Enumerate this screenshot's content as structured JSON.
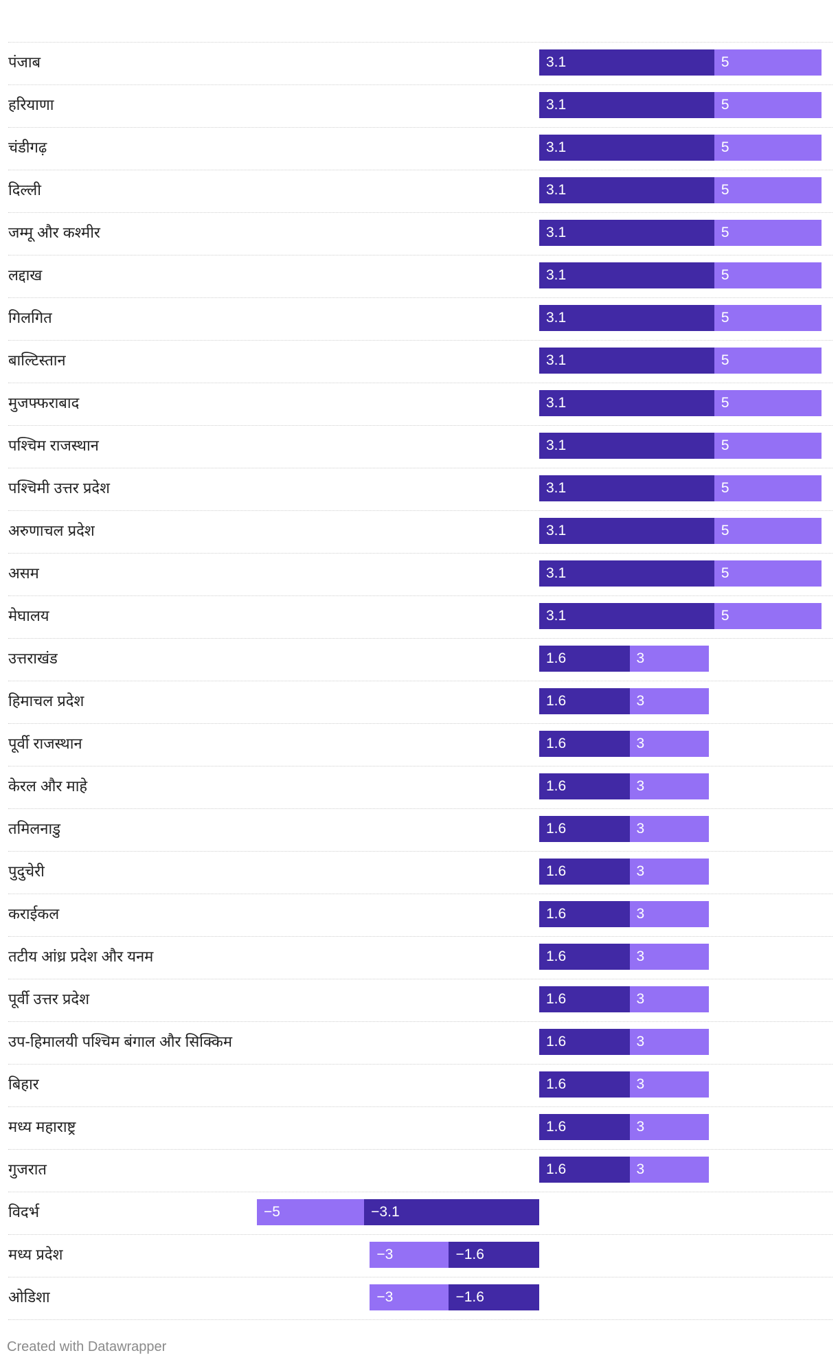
{
  "chart_data": {
    "type": "bar",
    "orientation": "horizontal",
    "stacked": "overlay",
    "categories": [
      "पंजाब",
      "हरियाणा",
      "चंडीगढ़",
      "दिल्ली",
      "जम्मू और कश्मीर",
      "लद्दाख",
      "गिलगित",
      "बाल्टिस्तान",
      "मुजफ्फराबाद",
      "पश्चिम राजस्थान",
      "पश्चिमी उत्तर प्रदेश",
      "अरुणाचल प्रदेश",
      "असम",
      "मेघालय",
      "उत्तराखंड",
      "हिमाचल प्रदेश",
      "पूर्वी राजस्थान",
      "केरल और माहे",
      "तमिलनाडु",
      "पुदुचेरी",
      "कराईकल",
      "तटीय आंध्र प्रदेश और यनम",
      "पूर्वी उत्तर प्रदेश",
      "उप-हिमालयी पश्चिम बंगाल और सिक्किम",
      "बिहार",
      "मध्य महाराष्ट्र",
      "गुजरात",
      "विदर्भ",
      "मध्य प्रदेश",
      "ओडिशा"
    ],
    "series": [
      {
        "name": "dark",
        "color": "#4129a5",
        "values": [
          3.1,
          3.1,
          3.1,
          3.1,
          3.1,
          3.1,
          3.1,
          3.1,
          3.1,
          3.1,
          3.1,
          3.1,
          3.1,
          3.1,
          1.6,
          1.6,
          1.6,
          1.6,
          1.6,
          1.6,
          1.6,
          1.6,
          1.6,
          1.6,
          1.6,
          1.6,
          1.6,
          -3.1,
          -1.6,
          -1.6
        ],
        "labels": [
          "3.1",
          "3.1",
          "3.1",
          "3.1",
          "3.1",
          "3.1",
          "3.1",
          "3.1",
          "3.1",
          "3.1",
          "3.1",
          "3.1",
          "3.1",
          "3.1",
          "1.6",
          "1.6",
          "1.6",
          "1.6",
          "1.6",
          "1.6",
          "1.6",
          "1.6",
          "1.6",
          "1.6",
          "1.6",
          "1.6",
          "1.6",
          "−3.1",
          "−1.6",
          "−1.6"
        ]
      },
      {
        "name": "light",
        "color": "#9470f5",
        "values": [
          5,
          5,
          5,
          5,
          5,
          5,
          5,
          5,
          5,
          5,
          5,
          5,
          5,
          5,
          3,
          3,
          3,
          3,
          3,
          3,
          3,
          3,
          3,
          3,
          3,
          3,
          3,
          -5,
          -3,
          -3
        ],
        "labels": [
          "5",
          "5",
          "5",
          "5",
          "5",
          "5",
          "5",
          "5",
          "5",
          "5",
          "5",
          "5",
          "5",
          "5",
          "3",
          "3",
          "3",
          "3",
          "3",
          "3",
          "3",
          "3",
          "3",
          "3",
          "3",
          "3",
          "3",
          "−5",
          "−3",
          "−3"
        ]
      }
    ],
    "xlim": [
      -5,
      5
    ],
    "title": "",
    "xlabel": "",
    "ylabel": "",
    "grid": false,
    "legend": "none"
  },
  "footer": {
    "credit": "Created with Datawrapper"
  },
  "colors": {
    "dark_bar": "#4129a5",
    "light_bar": "#9470f5",
    "label_text": "#ffffff",
    "row_text": "#222222",
    "credit_text": "#8a8a8a"
  }
}
